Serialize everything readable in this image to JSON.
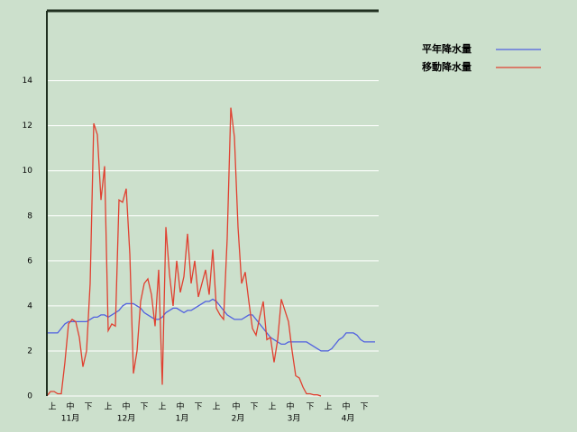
{
  "chart_data": {
    "type": "line",
    "x": [
      0,
      2,
      4,
      6,
      8,
      10,
      12,
      14,
      16,
      18,
      20,
      22,
      24,
      26,
      28,
      30,
      32,
      34,
      36,
      38,
      40,
      42,
      44,
      46,
      48,
      50,
      52,
      54,
      56,
      58,
      60,
      62,
      64,
      66,
      68,
      70,
      72,
      74,
      76,
      78,
      80,
      82,
      84,
      86,
      88,
      90,
      92,
      94,
      96,
      98,
      100,
      102,
      104,
      106,
      108,
      110,
      112,
      114,
      116,
      118,
      120,
      122,
      124,
      126,
      128,
      130,
      132,
      134,
      136,
      138,
      140,
      142,
      144,
      146,
      148,
      150,
      152,
      154,
      156,
      158,
      160,
      162,
      164,
      166,
      168,
      170,
      172,
      174,
      176,
      178,
      180,
      182
    ],
    "series": [
      {
        "name": "平年降水量",
        "color": "#5060e0",
        "values": [
          2.8,
          2.8,
          2.8,
          2.8,
          3.0,
          3.2,
          3.3,
          3.3,
          3.3,
          3.3,
          3.3,
          3.3,
          3.4,
          3.5,
          3.5,
          3.6,
          3.6,
          3.5,
          3.6,
          3.7,
          3.8,
          4.0,
          4.1,
          4.1,
          4.1,
          4.0,
          3.9,
          3.7,
          3.6,
          3.5,
          3.4,
          3.4,
          3.5,
          3.7,
          3.8,
          3.9,
          3.9,
          3.8,
          3.7,
          3.8,
          3.8,
          3.9,
          4.0,
          4.1,
          4.2,
          4.2,
          4.3,
          4.2,
          4.0,
          3.8,
          3.6,
          3.5,
          3.4,
          3.4,
          3.4,
          3.5,
          3.6,
          3.6,
          3.4,
          3.2,
          3.0,
          2.8,
          2.6,
          2.5,
          2.4,
          2.3,
          2.3,
          2.4,
          2.4,
          2.4,
          2.4,
          2.4,
          2.4,
          2.3,
          2.2,
          2.1,
          2.0,
          2.0,
          2.0,
          2.1,
          2.3,
          2.5,
          2.6,
          2.8,
          2.8,
          2.8,
          2.7,
          2.5,
          2.4,
          2.4,
          2.4,
          2.4
        ]
      },
      {
        "name": "移動降水量",
        "color": "#e04030",
        "values": [
          0,
          0.2,
          0.2,
          0.1,
          0.1,
          1.5,
          3.2,
          3.4,
          3.3,
          2.6,
          1.3,
          2.0,
          5.0,
          12.1,
          11.6,
          8.7,
          10.2,
          2.9,
          3.2,
          3.1,
          8.7,
          8.6,
          9.2,
          6.3,
          1.0,
          2.0,
          4.2,
          5.0,
          5.2,
          4.5,
          3.1,
          5.6,
          0.5,
          7.5,
          5.4,
          4.0,
          6.0,
          4.6,
          5.3,
          7.2,
          5.0,
          6.0,
          4.4,
          5.0,
          5.6,
          4.5,
          6.5,
          3.9,
          3.6,
          3.4,
          7.0,
          12.8,
          11.5,
          7.5,
          5.0,
          5.5,
          4.2,
          3.0,
          2.7,
          3.5,
          4.2,
          2.5,
          2.6,
          1.5,
          2.5,
          4.3,
          3.8,
          3.3,
          2.0,
          0.9,
          0.8,
          0.4,
          0.1,
          0.1,
          0.05,
          0.05,
          0,
          null,
          null,
          null,
          null,
          null,
          null,
          null,
          null,
          null,
          null,
          null,
          null,
          null,
          null,
          null
        ]
      }
    ],
    "xlim": [
      0,
      184
    ],
    "xticks": [
      {
        "value": 3,
        "label": "上"
      },
      {
        "value": 13,
        "label": "中"
      },
      {
        "value": 23,
        "label": "下"
      },
      {
        "value": 34,
        "label": "上"
      },
      {
        "value": 44,
        "label": "中"
      },
      {
        "value": 54,
        "label": "下"
      },
      {
        "value": 64,
        "label": "上"
      },
      {
        "value": 74,
        "label": "中"
      },
      {
        "value": 84,
        "label": "下"
      },
      {
        "value": 94,
        "label": "上"
      },
      {
        "value": 105,
        "label": "中"
      },
      {
        "value": 115,
        "label": "下"
      },
      {
        "value": 125,
        "label": "上"
      },
      {
        "value": 135,
        "label": "中"
      },
      {
        "value": 146,
        "label": "下"
      },
      {
        "value": 156,
        "label": "上"
      },
      {
        "value": 166,
        "label": "中"
      },
      {
        "value": 176,
        "label": "下"
      }
    ],
    "xticks_month": [
      {
        "value": 13,
        "label": "11月"
      },
      {
        "value": 44,
        "label": "12月"
      },
      {
        "value": 75,
        "label": "1月"
      },
      {
        "value": 106,
        "label": "2月"
      },
      {
        "value": 137,
        "label": "3月"
      },
      {
        "value": 167,
        "label": "4月"
      }
    ],
    "ylim": [
      0,
      17.1
    ],
    "yticks": [
      0,
      2,
      4,
      6,
      8,
      10,
      12,
      14
    ],
    "grid": true
  }
}
